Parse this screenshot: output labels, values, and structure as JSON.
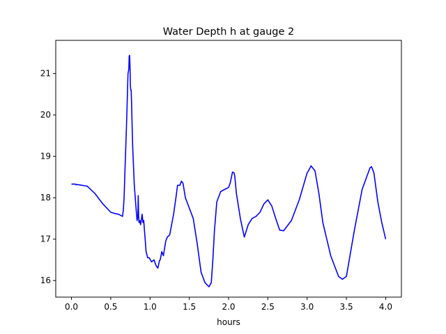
{
  "chart_data": {
    "type": "line",
    "title": "Water Depth h at gauge 2",
    "xlabel": "hours",
    "ylabel": "",
    "xlim": [
      -0.2,
      4.2
    ],
    "ylim": [
      15.6,
      21.8
    ],
    "xticks": [
      0.0,
      0.5,
      1.0,
      1.5,
      2.0,
      2.5,
      3.0,
      3.5,
      4.0
    ],
    "xtick_labels": [
      "0.0",
      "0.5",
      "1.0",
      "1.5",
      "2.0",
      "2.5",
      "3.0",
      "3.5",
      "4.0"
    ],
    "yticks": [
      16,
      17,
      18,
      19,
      20,
      21
    ],
    "ytick_labels": [
      "16",
      "17",
      "18",
      "19",
      "20",
      "21"
    ],
    "grid": false,
    "series": [
      {
        "color": "#0000ff",
        "x": [
          0.0,
          0.05,
          0.06,
          0.07,
          0.1,
          0.2,
          0.3,
          0.4,
          0.5,
          0.55,
          0.6,
          0.65,
          0.66,
          0.67,
          0.68,
          0.7,
          0.72,
          0.725,
          0.73,
          0.735,
          0.74,
          0.745,
          0.75,
          0.755,
          0.76,
          0.765,
          0.77,
          0.78,
          0.8,
          0.82,
          0.835,
          0.845,
          0.85,
          0.855,
          0.86,
          0.87,
          0.88,
          0.9,
          0.91,
          0.92,
          0.93,
          0.95,
          0.97,
          0.99,
          1.02,
          1.05,
          1.08,
          1.1,
          1.12,
          1.13,
          1.15,
          1.17,
          1.2,
          1.22,
          1.25,
          1.3,
          1.33,
          1.35,
          1.38,
          1.4,
          1.42,
          1.45,
          1.5,
          1.55,
          1.6,
          1.65,
          1.7,
          1.75,
          1.78,
          1.8,
          1.82,
          1.85,
          1.9,
          1.95,
          2.0,
          2.02,
          2.05,
          2.07,
          2.08,
          2.1,
          2.15,
          2.2,
          2.25,
          2.3,
          2.35,
          2.4,
          2.45,
          2.5,
          2.55,
          2.6,
          2.65,
          2.7,
          2.8,
          2.9,
          3.0,
          3.02,
          3.05,
          3.1,
          3.15,
          3.2,
          3.3,
          3.4,
          3.45,
          3.5,
          3.6,
          3.7,
          3.8,
          3.82,
          3.85,
          3.9,
          3.95,
          4.0
        ],
        "y": [
          18.33,
          18.33,
          18.31,
          18.32,
          18.31,
          18.28,
          18.1,
          17.85,
          17.65,
          17.62,
          17.6,
          17.55,
          17.7,
          18.0,
          18.6,
          19.7,
          21.0,
          21.05,
          21.1,
          21.42,
          21.44,
          21.2,
          20.7,
          20.6,
          20.6,
          20.3,
          19.9,
          19.2,
          18.3,
          17.8,
          17.45,
          17.55,
          18.05,
          17.55,
          17.4,
          17.45,
          17.35,
          17.6,
          17.4,
          17.45,
          17.2,
          16.7,
          16.55,
          16.55,
          16.45,
          16.5,
          16.35,
          16.3,
          16.48,
          16.5,
          16.7,
          16.6,
          16.95,
          17.05,
          17.1,
          17.6,
          18.0,
          18.3,
          18.3,
          18.4,
          18.35,
          18.0,
          17.75,
          17.5,
          16.9,
          16.2,
          15.95,
          15.85,
          15.95,
          16.5,
          17.2,
          17.9,
          18.15,
          18.2,
          18.25,
          18.35,
          18.62,
          18.6,
          18.5,
          18.1,
          17.5,
          17.05,
          17.35,
          17.5,
          17.55,
          17.65,
          17.85,
          17.95,
          17.8,
          17.5,
          17.22,
          17.2,
          17.45,
          17.95,
          18.6,
          18.66,
          18.77,
          18.65,
          18.1,
          17.4,
          16.6,
          16.1,
          16.03,
          16.1,
          17.2,
          18.2,
          18.72,
          18.75,
          18.6,
          17.9,
          17.4,
          17.0
        ]
      }
    ]
  }
}
